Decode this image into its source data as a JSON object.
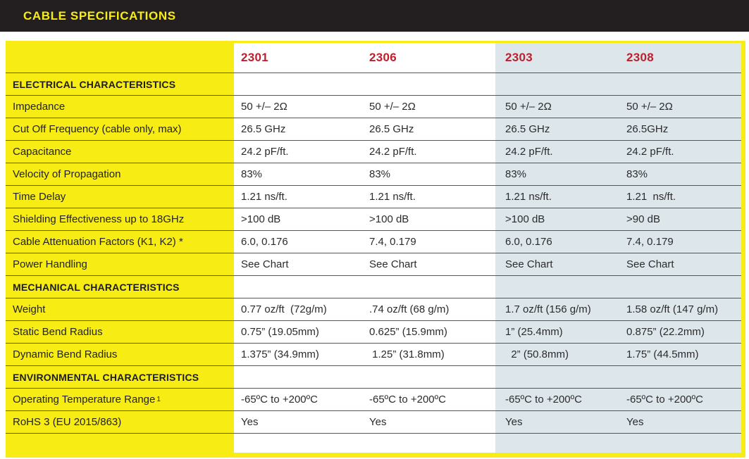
{
  "title": "CABLE SPECIFICATIONS",
  "colors": {
    "frame_yellow": "#f7ec13",
    "title_bar_black": "#231f20",
    "column_header_red": "#be1e2d",
    "highlight_blue": "#dde7eb",
    "divider_gray": "#545658"
  },
  "table": {
    "columns": [
      "2301",
      "2306",
      "2303",
      "2308"
    ],
    "rows": [
      {
        "type": "section",
        "label": "ELECTRICAL CHARACTERISTICS",
        "values": [
          "",
          "",
          "",
          ""
        ]
      },
      {
        "type": "data",
        "label": "Impedance",
        "values": [
          "50 +/– 2Ω",
          "50 +/– 2Ω",
          "50 +/– 2Ω",
          "50 +/– 2Ω"
        ]
      },
      {
        "type": "data",
        "label": "Cut Off Frequency (cable only, max)",
        "values": [
          "26.5 GHz",
          "26.5 GHz",
          "26.5 GHz",
          "26.5GHz"
        ]
      },
      {
        "type": "data",
        "label": "Capacitance",
        "values": [
          "24.2 pF/ft.",
          "24.2 pF/ft.",
          "24.2 pF/ft.",
          "24.2 pF/ft."
        ]
      },
      {
        "type": "data",
        "label": "Velocity of Propagation",
        "values": [
          "83%",
          "83%",
          "83%",
          "83%"
        ]
      },
      {
        "type": "data",
        "label": "Time Delay",
        "values": [
          "1.21 ns/ft.",
          "1.21 ns/ft.",
          "1.21 ns/ft.",
          "1.21  ns/ft."
        ]
      },
      {
        "type": "data",
        "label": "Shielding Effectiveness up to 18GHz",
        "values": [
          ">100 dB",
          ">100 dB",
          ">100 dB",
          ">90 dB"
        ]
      },
      {
        "type": "data",
        "label": "Cable Attenuation Factors (K1, K2) *",
        "values": [
          "6.0, 0.176",
          "7.4, 0.179",
          "6.0, 0.176",
          "7.4, 0.179"
        ]
      },
      {
        "type": "data",
        "label": "Power Handling",
        "values": [
          "See Chart",
          "See Chart",
          "See Chart",
          "See Chart"
        ]
      },
      {
        "type": "section",
        "label": "MECHANICAL CHARACTERISTICS",
        "values": [
          "",
          "",
          "",
          ""
        ]
      },
      {
        "type": "data",
        "label": "Weight",
        "values": [
          "0.77 oz/ft  (72g/m)",
          ".74 oz/ft (68 g/m)",
          "1.7 oz/ft (156 g/m)",
          "1.58 oz/ft (147 g/m)"
        ]
      },
      {
        "type": "data",
        "label": "Static Bend Radius",
        "values": [
          "0.75” (19.05mm)",
          "0.625” (15.9mm)",
          "1” (25.4mm)",
          "0.875” (22.2mm)"
        ]
      },
      {
        "type": "data",
        "label": "Dynamic Bend Radius",
        "values": [
          "1.375” (34.9mm)",
          " 1.25” (31.8mm)",
          "  2” (50.8mm)",
          "1.75” (44.5mm)"
        ]
      },
      {
        "type": "section",
        "label": "ENVIRONMENTAL CHARACTERISTICS",
        "values": [
          "",
          "",
          "",
          ""
        ]
      },
      {
        "type": "data",
        "label": "Operating Temperature Range",
        "label_sup": "1",
        "values": [
          "-65ºC to +200ºC",
          "-65ºC to +200ºC",
          "-65ºC to +200ºC",
          "-65ºC to +200ºC"
        ]
      },
      {
        "type": "data",
        "label": "RoHS 3 (EU 2015/863)",
        "values": [
          "Yes",
          "Yes",
          "Yes",
          "Yes"
        ]
      }
    ]
  }
}
